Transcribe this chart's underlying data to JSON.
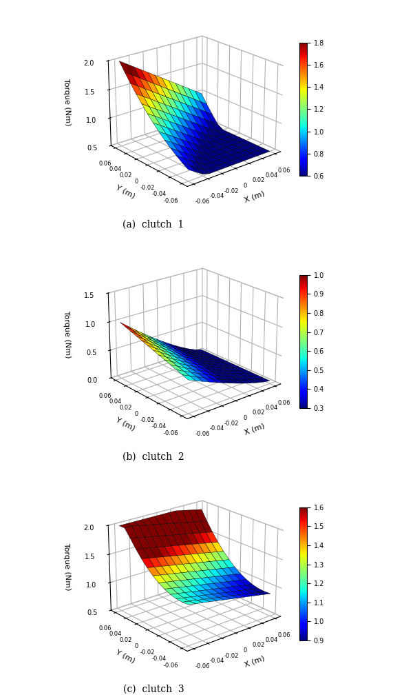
{
  "x_range": [
    -0.06,
    0.06
  ],
  "y_range": [
    -0.06,
    0.06
  ],
  "n_points": 13,
  "subplots": [
    {
      "label": "(a)  clutch  1",
      "zlim": [
        0.5,
        2.0
      ],
      "zticks": [
        0.5,
        1.0,
        1.5,
        2.0
      ],
      "clim": [
        0.6,
        1.8
      ],
      "cticks": [
        0.6,
        0.8,
        1.0,
        1.2,
        1.4,
        1.6,
        1.8
      ],
      "surface_type": 1,
      "zlabel": "Torque (Nm)"
    },
    {
      "label": "(b)  clutch  2",
      "zlim": [
        0.0,
        1.5
      ],
      "zticks": [
        0.0,
        0.5,
        1.0,
        1.5
      ],
      "clim": [
        0.3,
        1.0
      ],
      "cticks": [
        0.3,
        0.4,
        0.5,
        0.6,
        0.7,
        0.8,
        0.9,
        1.0
      ],
      "surface_type": 2,
      "zlabel": "Torque (Nm)"
    },
    {
      "label": "(c)  clutch  3",
      "zlim": [
        0.5,
        2.0
      ],
      "zticks": [
        0.5,
        1.0,
        1.5,
        2.0
      ],
      "clim": [
        0.9,
        1.6
      ],
      "cticks": [
        0.9,
        1.0,
        1.1,
        1.2,
        1.3,
        1.4,
        1.5,
        1.6
      ],
      "surface_type": 3,
      "zlabel": "Torque (Nm)"
    }
  ],
  "xlabel": "X (m)",
  "ylabel": "Y (m)",
  "background_color": "#ffffff",
  "elev": 22,
  "azim": -130,
  "xticks": [
    -0.06,
    -0.04,
    -0.02,
    0,
    0.02,
    0.04,
    0.06
  ],
  "yticks": [
    -0.06,
    -0.04,
    -0.02,
    0,
    0.02,
    0.04,
    0.06
  ]
}
